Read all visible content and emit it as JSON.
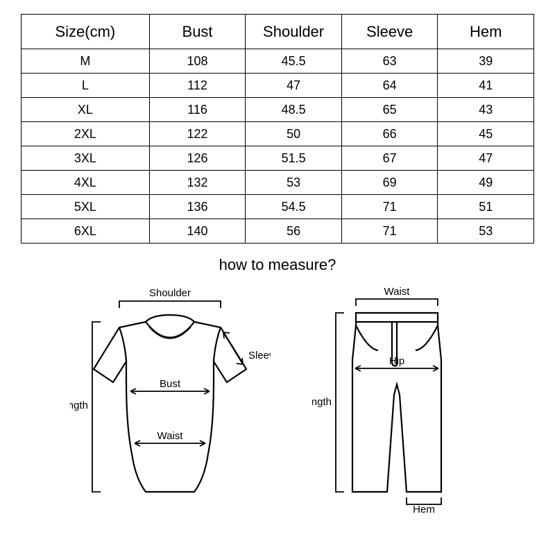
{
  "table": {
    "type": "table",
    "background_color": "#ffffff",
    "border_color": "#000000",
    "header_fontsize": 22,
    "cell_fontsize": 18,
    "columns": [
      "Size(cm)",
      "Bust",
      "Shoulder",
      "Sleeve",
      "Hem"
    ],
    "column_widths_pct": [
      25,
      18.75,
      18.75,
      18.75,
      18.75
    ],
    "rows": [
      [
        "M",
        "108",
        "45.5",
        "63",
        "39"
      ],
      [
        "L",
        "112",
        "47",
        "64",
        "41"
      ],
      [
        "XL",
        "116",
        "48.5",
        "65",
        "43"
      ],
      [
        "2XL",
        "122",
        "50",
        "66",
        "45"
      ],
      [
        "3XL",
        "126",
        "51.5",
        "67",
        "47"
      ],
      [
        "4XL",
        "132",
        "53",
        "69",
        "49"
      ],
      [
        "5XL",
        "136",
        "54.5",
        "71",
        "51"
      ],
      [
        "6XL",
        "140",
        "56",
        "71",
        "53"
      ]
    ]
  },
  "measure": {
    "title": "how to measure?",
    "shirt": {
      "labels": {
        "shoulder": "Shoulder",
        "bust": "Bust",
        "waist": "Waist",
        "length": "Length",
        "sleeve": "Sleeve"
      },
      "line_color": "#000000",
      "line_width": 2.2
    },
    "pants": {
      "labels": {
        "waist": "Waist",
        "hip": "Hip",
        "length": "Length",
        "hem": "Hem"
      },
      "line_color": "#000000",
      "line_width": 2.2
    }
  }
}
